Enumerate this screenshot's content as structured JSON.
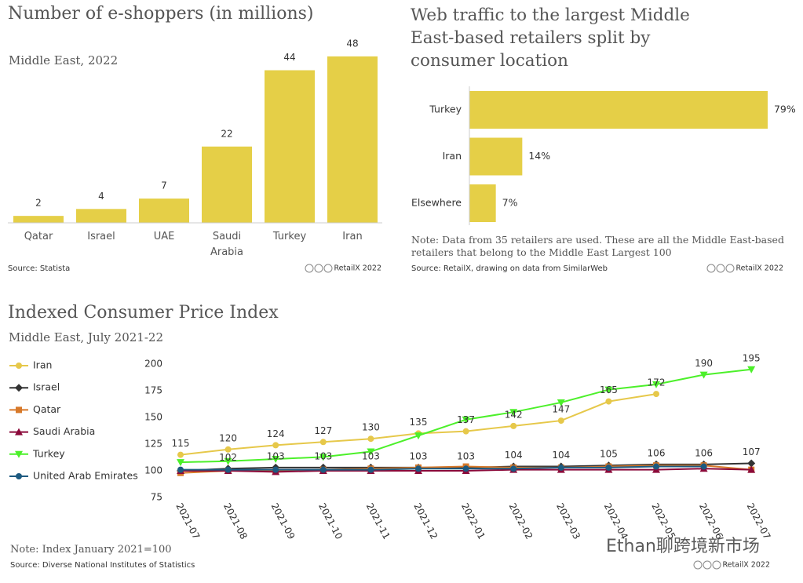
{
  "chart_data": [
    {
      "type": "bar",
      "title": "Number of e-shoppers (in millions)",
      "subtitle": "Middle East, 2022",
      "categories": [
        "Qatar",
        "Israel",
        "UAE",
        "Saudi Arabia",
        "Turkey",
        "Iran"
      ],
      "values": [
        2,
        4,
        7,
        22,
        44,
        48
      ],
      "color": "#e5cf47",
      "source": "Source: Statista",
      "credit": "RetailX 2022"
    },
    {
      "type": "hbar",
      "title": "Web traffic to the largest Middle East-based retailers split by consumer location",
      "categories": [
        "Turkey",
        "Iran",
        "Elsewhere"
      ],
      "values": [
        79,
        14,
        7
      ],
      "value_labels": [
        "79%",
        "14%",
        "7%"
      ],
      "color": "#e5cf47",
      "note": "Note: Data from 35 retailers are used. These are all the Middle East-based retailers that belong to the Middle East Largest 100",
      "source": "Source: RetailX, drawing on data from SimilarWeb",
      "credit": "RetailX 2022"
    },
    {
      "type": "line",
      "title": "Indexed Consumer Price Index",
      "subtitle": "Middle East, July 2021-22",
      "categories": [
        "2021-07",
        "2021-08",
        "2021-09",
        "2021-10",
        "2021-11",
        "2021-12",
        "2022-01",
        "2022-02",
        "2022-03",
        "2022-04",
        "2022-05",
        "2022-06",
        "2022-07"
      ],
      "ylim": [
        75,
        200
      ],
      "yticks": [
        75,
        100,
        125,
        150,
        175,
        200
      ],
      "legend": "left",
      "series": [
        {
          "name": "Iran",
          "color": "#e6c84a",
          "marker": "circle",
          "values": [
            115,
            120,
            124,
            127,
            130,
            135,
            137,
            142,
            147,
            165,
            172,
            null,
            null
          ],
          "value_labels": [
            "115",
            "120",
            "124",
            "127",
            "130",
            "135",
            "137",
            "142",
            "147",
            "165",
            "172",
            null,
            null
          ]
        },
        {
          "name": "Israel",
          "color": "#333333",
          "marker": "diamond",
          "values": [
            100,
            102,
            103,
            103,
            103,
            103,
            103,
            104,
            104,
            105,
            106,
            106,
            107
          ],
          "value_labels": [
            null,
            "102",
            "103",
            "103",
            "103",
            "103",
            "103",
            "104",
            "104",
            "105",
            "106",
            "106",
            "107"
          ]
        },
        {
          "name": "Qatar",
          "color": "#d7792a",
          "marker": "square",
          "values": [
            98,
            100,
            100,
            101,
            102,
            103,
            104,
            103,
            103,
            104,
            105,
            105,
            101
          ]
        },
        {
          "name": "Saudi Arabia",
          "color": "#8b0a3a",
          "marker": "triangle-up",
          "values": [
            100,
            100,
            99,
            100,
            100,
            100,
            100,
            101,
            101,
            101,
            101,
            102,
            101
          ]
        },
        {
          "name": "Turkey",
          "color": "#4cf02a",
          "marker": "triangle-down",
          "values": [
            108,
            109,
            111,
            113,
            118,
            133,
            148,
            155,
            164,
            176,
            181,
            190,
            195
          ],
          "value_labels": [
            null,
            null,
            null,
            null,
            null,
            null,
            null,
            null,
            null,
            null,
            null,
            "190",
            "195"
          ]
        },
        {
          "name": "United Arab Emirates",
          "color": "#1d5a80",
          "marker": "circle",
          "values": [
            101,
            101,
            101,
            101,
            101,
            102,
            102,
            102,
            103,
            103,
            104,
            104,
            null
          ]
        }
      ],
      "note": "Note: Index January 2021=100",
      "source": "Source: Diverse National Institutes of Statistics",
      "credit": "RetailX 2022"
    }
  ],
  "watermark": "Ethan聊跨境新市场"
}
